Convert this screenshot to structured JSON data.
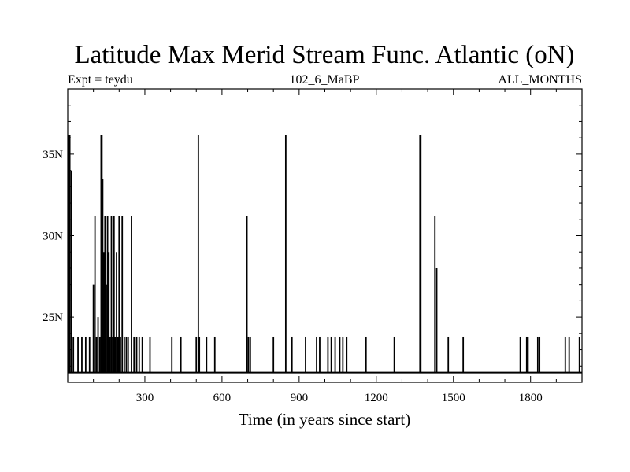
{
  "chart_data": {
    "type": "line",
    "title": "Latitude Max Merid Stream Func. Atlantic (oN)",
    "subtitle_left": "Expt = teydu",
    "subtitle_center": "102_6_MaBP",
    "subtitle_right": "ALL_MONTHS",
    "xlabel": "Time (in years since start)",
    "ylabel": "",
    "xlim": [
      0,
      2000
    ],
    "ylim": [
      21,
      39
    ],
    "x_ticks": [
      300,
      600,
      900,
      1200,
      1500,
      1800
    ],
    "x_tick_labels": [
      "300",
      "600",
      "900",
      "1200",
      "1500",
      "1800"
    ],
    "y_ticks": [
      25,
      30,
      35
    ],
    "y_tick_labels": [
      "25N",
      "30N",
      "35N"
    ],
    "baseline": 21.6,
    "spikes": [
      [
        3,
        36.2
      ],
      [
        8,
        36.2
      ],
      [
        14,
        34.0
      ],
      [
        22,
        23.8
      ],
      [
        40,
        23.8
      ],
      [
        55,
        23.8
      ],
      [
        70,
        23.8
      ],
      [
        85,
        23.8
      ],
      [
        100,
        27.0
      ],
      [
        106,
        31.2
      ],
      [
        112,
        23.8
      ],
      [
        118,
        25.0
      ],
      [
        125,
        23.8
      ],
      [
        130,
        36.2
      ],
      [
        133,
        36.2
      ],
      [
        136,
        33.5
      ],
      [
        140,
        29.0
      ],
      [
        145,
        31.2
      ],
      [
        150,
        27.0
      ],
      [
        155,
        31.2
      ],
      [
        160,
        29.0
      ],
      [
        165,
        23.8
      ],
      [
        170,
        31.2
      ],
      [
        175,
        23.8
      ],
      [
        180,
        31.2
      ],
      [
        185,
        23.8
      ],
      [
        190,
        29.0
      ],
      [
        195,
        23.8
      ],
      [
        200,
        31.2
      ],
      [
        205,
        23.8
      ],
      [
        212,
        31.2
      ],
      [
        220,
        23.8
      ],
      [
        228,
        23.8
      ],
      [
        235,
        23.8
      ],
      [
        248,
        31.2
      ],
      [
        258,
        23.8
      ],
      [
        268,
        23.8
      ],
      [
        278,
        23.8
      ],
      [
        290,
        23.8
      ],
      [
        320,
        23.8
      ],
      [
        405,
        23.8
      ],
      [
        440,
        23.8
      ],
      [
        500,
        23.8
      ],
      [
        508,
        36.2
      ],
      [
        512,
        23.8
      ],
      [
        540,
        23.8
      ],
      [
        572,
        23.8
      ],
      [
        697,
        31.2
      ],
      [
        703,
        23.8
      ],
      [
        710,
        23.8
      ],
      [
        800,
        23.8
      ],
      [
        848,
        36.2
      ],
      [
        872,
        23.8
      ],
      [
        925,
        23.8
      ],
      [
        968,
        23.8
      ],
      [
        980,
        23.8
      ],
      [
        1012,
        23.8
      ],
      [
        1025,
        23.8
      ],
      [
        1040,
        23.8
      ],
      [
        1058,
        23.8
      ],
      [
        1070,
        23.8
      ],
      [
        1085,
        23.8
      ],
      [
        1160,
        23.8
      ],
      [
        1270,
        23.8
      ],
      [
        1370,
        36.2
      ],
      [
        1373,
        36.2
      ],
      [
        1428,
        31.2
      ],
      [
        1435,
        28.0
      ],
      [
        1480,
        23.8
      ],
      [
        1538,
        23.8
      ],
      [
        1760,
        23.8
      ],
      [
        1785,
        23.8
      ],
      [
        1790,
        23.8
      ],
      [
        1828,
        23.8
      ],
      [
        1835,
        23.8
      ],
      [
        1935,
        23.8
      ],
      [
        1950,
        23.8
      ],
      [
        1990,
        23.8
      ]
    ]
  }
}
